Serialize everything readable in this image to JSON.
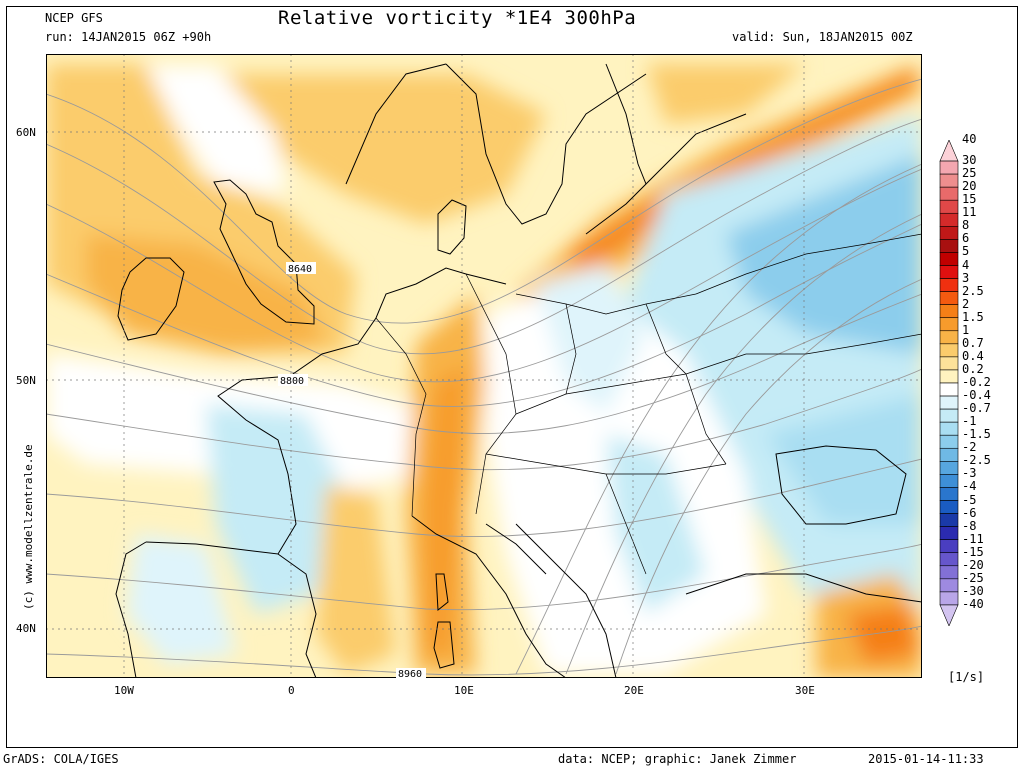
{
  "header": {
    "model": "NCEP GFS",
    "run": "run: 14JAN2015 06Z +90h",
    "title": "Relative vorticity *1E4 300hPa",
    "valid": "valid: Sun, 18JAN2015 00Z"
  },
  "axes": {
    "lat_labels": [
      "60N",
      "50N",
      "40N"
    ],
    "lon_labels": [
      "10W",
      "0",
      "10E",
      "20E",
      "30E"
    ]
  },
  "contour_labels": [
    "8640",
    "8800",
    "8960"
  ],
  "watermark": "(c) www.modellzentrale.de",
  "colorbar": {
    "levels": [
      "40",
      "30",
      "25",
      "20",
      "15",
      "11",
      "8",
      "6",
      "5",
      "4",
      "3",
      "2.5",
      "2",
      "1.5",
      "1",
      "0.7",
      "0.4",
      "0.2",
      "-0.2",
      "-0.4",
      "-0.7",
      "-1",
      "-1.5",
      "-2",
      "-2.5",
      "-3",
      "-4",
      "-5",
      "-6",
      "-8",
      "-11",
      "-15",
      "-20",
      "-25",
      "-30",
      "-40"
    ],
    "colors": [
      "#fcd2d8",
      "#f4a7b0",
      "#ee8e8e",
      "#e86a6a",
      "#e04848",
      "#d42a2a",
      "#c01818",
      "#a81010",
      "#c00000",
      "#e01010",
      "#f03010",
      "#f55a10",
      "#f57f17",
      "#f79b2c",
      "#f8b347",
      "#fbcc6c",
      "#fde29a",
      "#fff3c0",
      "#ffffff",
      "#dff4fb",
      "#c5ebf6",
      "#a9def2",
      "#8ccdec",
      "#6fb9e5",
      "#57a6df",
      "#3e8fd7",
      "#2a76cd",
      "#1a5cc2",
      "#1a3aa8",
      "#2b2bb0",
      "#4a3ec0",
      "#6656cc",
      "#8270d6",
      "#9e8ae0",
      "#b9a6e8",
      "#d3c4f0"
    ],
    "unit": "[1/s]"
  },
  "footer": {
    "left": "GrADS: COLA/IGES",
    "credit": "data: NCEP; graphic: Janek Zimmer",
    "timestamp": "2015-01-14-11:33"
  }
}
